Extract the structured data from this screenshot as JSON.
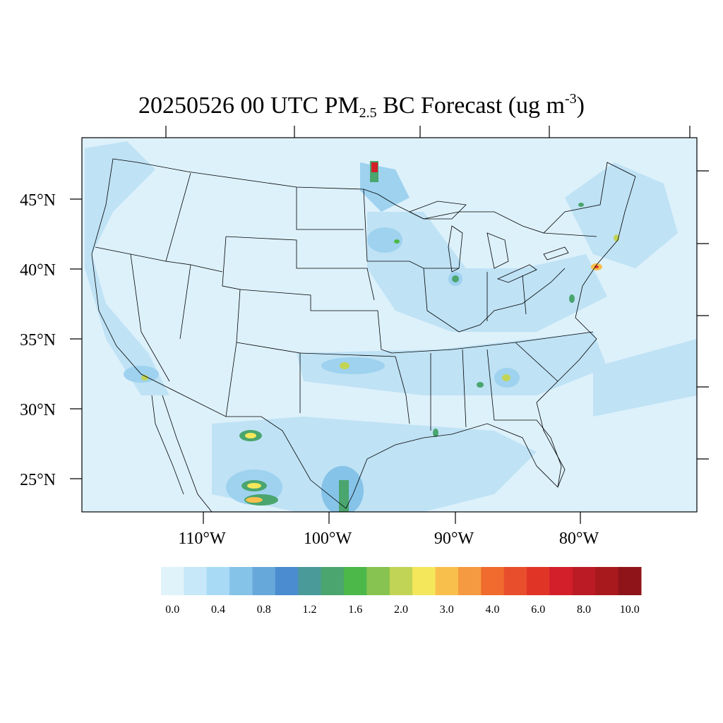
{
  "title": {
    "main": "20250526 00 UTC PM",
    "sub": "2.5",
    "rest": " BC Forecast (ug m",
    "sup": "-3",
    "close": ")"
  },
  "lat_labels": [
    "45°N",
    "40°N",
    "35°N",
    "30°N",
    "25°N"
  ],
  "lon_labels": [
    "110°W",
    "100°W",
    "90°W",
    "80°W"
  ],
  "colorbar": {
    "colors": [
      "#e0f3fb",
      "#c6e8f8",
      "#a8daf5",
      "#86c3e8",
      "#67a8da",
      "#4a8ccf",
      "#4a9a9a",
      "#4aa56e",
      "#4cb84a",
      "#86c350",
      "#c2d455",
      "#f5e75c",
      "#f8bf4d",
      "#f59a40",
      "#f06b2d",
      "#e84e2b",
      "#e03427",
      "#d21f2a",
      "#bb1b25",
      "#a8191e",
      "#8f1419"
    ],
    "tick_labels": [
      "0.0",
      "0.4",
      "0.8",
      "1.2",
      "1.6",
      "2.0",
      "3.0",
      "4.0",
      "6.0",
      "8.0",
      "10.0"
    ]
  },
  "map": {
    "background_color": "#ddf1fb",
    "light_color": "#bfe2f5",
    "medium_color": "#9ed2ef"
  }
}
